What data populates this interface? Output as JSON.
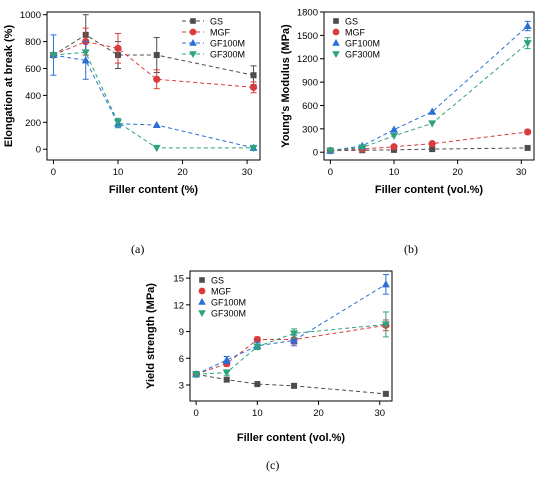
{
  "colors": {
    "GS": "#4d4d4d",
    "MGF": "#d93c3c",
    "GF100M": "#2a6fd6",
    "GF300M": "#2fa37b"
  },
  "captions": {
    "a": "(a)",
    "b": "(b)",
    "c": "(c)"
  },
  "chart_data": [
    {
      "panel": "a",
      "type": "scatter",
      "xlabel": "Filler content (%)",
      "ylabel": "Elongation at break (%)",
      "xlim": [
        -1,
        32
      ],
      "ylim": [
        -80,
        1020
      ],
      "xticks": [
        0,
        10,
        20,
        30
      ],
      "yticks": [
        0,
        200,
        400,
        600,
        800,
        1000
      ],
      "legend": "top-right",
      "legend_style": "line",
      "series": [
        {
          "name": "GS",
          "marker": "square",
          "x": [
            0,
            5,
            10,
            16,
            31
          ],
          "y": [
            700,
            850,
            700,
            700,
            550
          ],
          "err": [
            0,
            150,
            100,
            130,
            70
          ]
        },
        {
          "name": "MGF",
          "marker": "circle",
          "x": [
            0,
            5,
            10,
            16,
            31
          ],
          "y": [
            700,
            800,
            750,
            520,
            460
          ],
          "err": [
            0,
            100,
            110,
            70,
            40
          ]
        },
        {
          "name": "GF100M",
          "marker": "triangle-up",
          "x": [
            0,
            5,
            10,
            16,
            31
          ],
          "y": [
            700,
            660,
            190,
            180,
            10
          ],
          "err": [
            150,
            140,
            30,
            0,
            0
          ]
        },
        {
          "name": "GF300M",
          "marker": "triangle-down",
          "x": [
            0,
            5,
            10,
            16,
            31
          ],
          "y": [
            700,
            720,
            200,
            10,
            10
          ],
          "err": [
            0,
            0,
            30,
            0,
            0
          ]
        }
      ]
    },
    {
      "panel": "b",
      "type": "scatter",
      "xlabel": "Filler content (vol.%)",
      "ylabel": "Young's Modulus (MPa)",
      "xlim": [
        -1,
        32
      ],
      "ylim": [
        -100,
        1800
      ],
      "xticks": [
        0,
        10,
        20,
        30
      ],
      "yticks": [
        0,
        300,
        600,
        900,
        1200,
        1500,
        1800
      ],
      "legend": "top-left",
      "legend_style": "marker",
      "series": [
        {
          "name": "GS",
          "marker": "square",
          "x": [
            0,
            5,
            10,
            16,
            31
          ],
          "y": [
            20,
            25,
            30,
            40,
            55
          ],
          "err": [
            0,
            0,
            0,
            0,
            0
          ]
        },
        {
          "name": "MGF",
          "marker": "circle",
          "x": [
            0,
            5,
            10,
            16,
            31
          ],
          "y": [
            20,
            40,
            70,
            110,
            260
          ],
          "err": [
            0,
            0,
            0,
            0,
            20
          ]
        },
        {
          "name": "GF100M",
          "marker": "triangle-up",
          "x": [
            0,
            5,
            10,
            16,
            31
          ],
          "y": [
            20,
            80,
            290,
            520,
            1620
          ],
          "err": [
            0,
            0,
            0,
            0,
            60
          ]
        },
        {
          "name": "GF300M",
          "marker": "triangle-down",
          "x": [
            0,
            5,
            10,
            16,
            31
          ],
          "y": [
            20,
            60,
            210,
            370,
            1400
          ],
          "err": [
            0,
            0,
            0,
            0,
            70
          ]
        }
      ]
    },
    {
      "panel": "c",
      "type": "scatter",
      "xlabel": "Filler content (vol.%)",
      "ylabel": "Yield strength (MPa)",
      "xlim": [
        -1,
        32
      ],
      "ylim": [
        1.2,
        15.8
      ],
      "xticks": [
        0,
        10,
        20,
        30
      ],
      "yticks": [
        3,
        6,
        9,
        12,
        15
      ],
      "legend": "top-left",
      "legend_style": "marker",
      "series": [
        {
          "name": "GS",
          "marker": "square",
          "x": [
            0,
            5,
            10,
            16,
            31
          ],
          "y": [
            4.2,
            3.6,
            3.1,
            2.9,
            2.0
          ],
          "err": [
            0,
            0,
            0,
            0,
            0
          ]
        },
        {
          "name": "MGF",
          "marker": "circle",
          "x": [
            0,
            5,
            10,
            16,
            31
          ],
          "y": [
            4.2,
            5.4,
            8.1,
            8.1,
            9.7
          ],
          "err": [
            0.3,
            0.3,
            0.3,
            0.5,
            0.6
          ]
        },
        {
          "name": "GF100M",
          "marker": "triangle-up",
          "x": [
            0,
            5,
            10,
            16,
            31
          ],
          "y": [
            4.2,
            5.8,
            7.4,
            8.0,
            14.3
          ],
          "err": [
            0.3,
            0.4,
            0.4,
            0.6,
            1.1
          ]
        },
        {
          "name": "GF300M",
          "marker": "triangle-down",
          "x": [
            0,
            5,
            10,
            16,
            31
          ],
          "y": [
            4.2,
            4.4,
            7.3,
            8.8,
            9.8
          ],
          "err": [
            0.3,
            0.3,
            0.3,
            0.5,
            1.4
          ]
        }
      ]
    }
  ]
}
